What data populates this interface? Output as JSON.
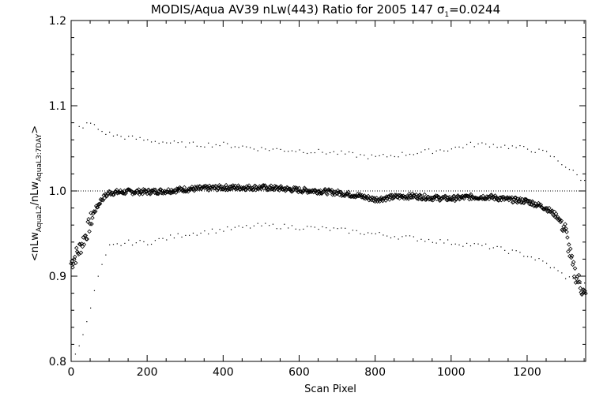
{
  "chart_data": {
    "type": "scatter",
    "title": {
      "prefix": "MODIS/Aqua AV39 nLw(443) Ratio for 2005 147 ",
      "sigma_symbol": "σ",
      "sigma_sub": "1",
      "sigma_value": "=0.0244"
    },
    "xlabel": "Scan Pixel",
    "ylabel": {
      "open": "<nLw",
      "sub1": "AquaL2",
      "mid": "/nLw",
      "sub2": "AquaL3:7DAY",
      "close": ">"
    },
    "xlim": [
      0,
      1354
    ],
    "ylim": [
      0.8,
      1.2
    ],
    "x_ticks": [
      0,
      200,
      400,
      600,
      800,
      1000,
      1200
    ],
    "x_tick_labels": [
      "0",
      "200",
      "400",
      "600",
      "800",
      "1000",
      "1200"
    ],
    "y_ticks": [
      0.8,
      0.9,
      1.0,
      1.1,
      1.2
    ],
    "y_tick_labels": [
      "0.8",
      "0.9",
      "1.0",
      "1.1",
      "1.2"
    ],
    "reference_line": 1.0,
    "series": [
      {
        "role": "mean",
        "marker": "diamond",
        "points": [
          [
            0,
            0.915
          ],
          [
            20,
            0.93
          ],
          [
            40,
            0.95
          ],
          [
            60,
            0.975
          ],
          [
            80,
            0.99
          ],
          [
            100,
            0.998
          ],
          [
            150,
            0.999
          ],
          [
            200,
            0.999
          ],
          [
            250,
            1.0
          ],
          [
            300,
            1.002
          ],
          [
            350,
            1.003
          ],
          [
            400,
            1.004
          ],
          [
            450,
            1.004
          ],
          [
            500,
            1.004
          ],
          [
            550,
            1.003
          ],
          [
            600,
            1.001
          ],
          [
            650,
            1.0
          ],
          [
            700,
            0.998
          ],
          [
            750,
            0.995
          ],
          [
            800,
            0.99
          ],
          [
            850,
            0.993
          ],
          [
            900,
            0.994
          ],
          [
            950,
            0.992
          ],
          [
            1000,
            0.991
          ],
          [
            1050,
            0.993
          ],
          [
            1100,
            0.993
          ],
          [
            1150,
            0.99
          ],
          [
            1200,
            0.988
          ],
          [
            1250,
            0.98
          ],
          [
            1280,
            0.97
          ],
          [
            1300,
            0.955
          ],
          [
            1320,
            0.91
          ],
          [
            1340,
            0.89
          ],
          [
            1354,
            0.875
          ]
        ]
      },
      {
        "role": "upper",
        "marker": "dot",
        "points": [
          [
            20,
            1.075
          ],
          [
            50,
            1.08
          ],
          [
            80,
            1.07
          ],
          [
            120,
            1.065
          ],
          [
            200,
            1.06
          ],
          [
            300,
            1.055
          ],
          [
            400,
            1.055
          ],
          [
            500,
            1.05
          ],
          [
            600,
            1.048
          ],
          [
            700,
            1.045
          ],
          [
            800,
            1.04
          ],
          [
            900,
            1.045
          ],
          [
            1000,
            1.05
          ],
          [
            1050,
            1.055
          ],
          [
            1100,
            1.055
          ],
          [
            1200,
            1.05
          ],
          [
            1250,
            1.045
          ],
          [
            1300,
            1.03
          ],
          [
            1354,
            1.01
          ]
        ]
      },
      {
        "role": "lower",
        "marker": "dot",
        "points": [
          [
            10,
            0.81
          ],
          [
            40,
            0.845
          ],
          [
            70,
            0.9
          ],
          [
            100,
            0.935
          ],
          [
            150,
            0.94
          ],
          [
            200,
            0.94
          ],
          [
            300,
            0.95
          ],
          [
            400,
            0.955
          ],
          [
            500,
            0.96
          ],
          [
            600,
            0.958
          ],
          [
            700,
            0.955
          ],
          [
            800,
            0.95
          ],
          [
            900,
            0.945
          ],
          [
            1000,
            0.94
          ],
          [
            1100,
            0.935
          ],
          [
            1200,
            0.925
          ],
          [
            1250,
            0.915
          ],
          [
            1300,
            0.9
          ],
          [
            1354,
            0.89
          ]
        ]
      }
    ],
    "grid": false
  }
}
